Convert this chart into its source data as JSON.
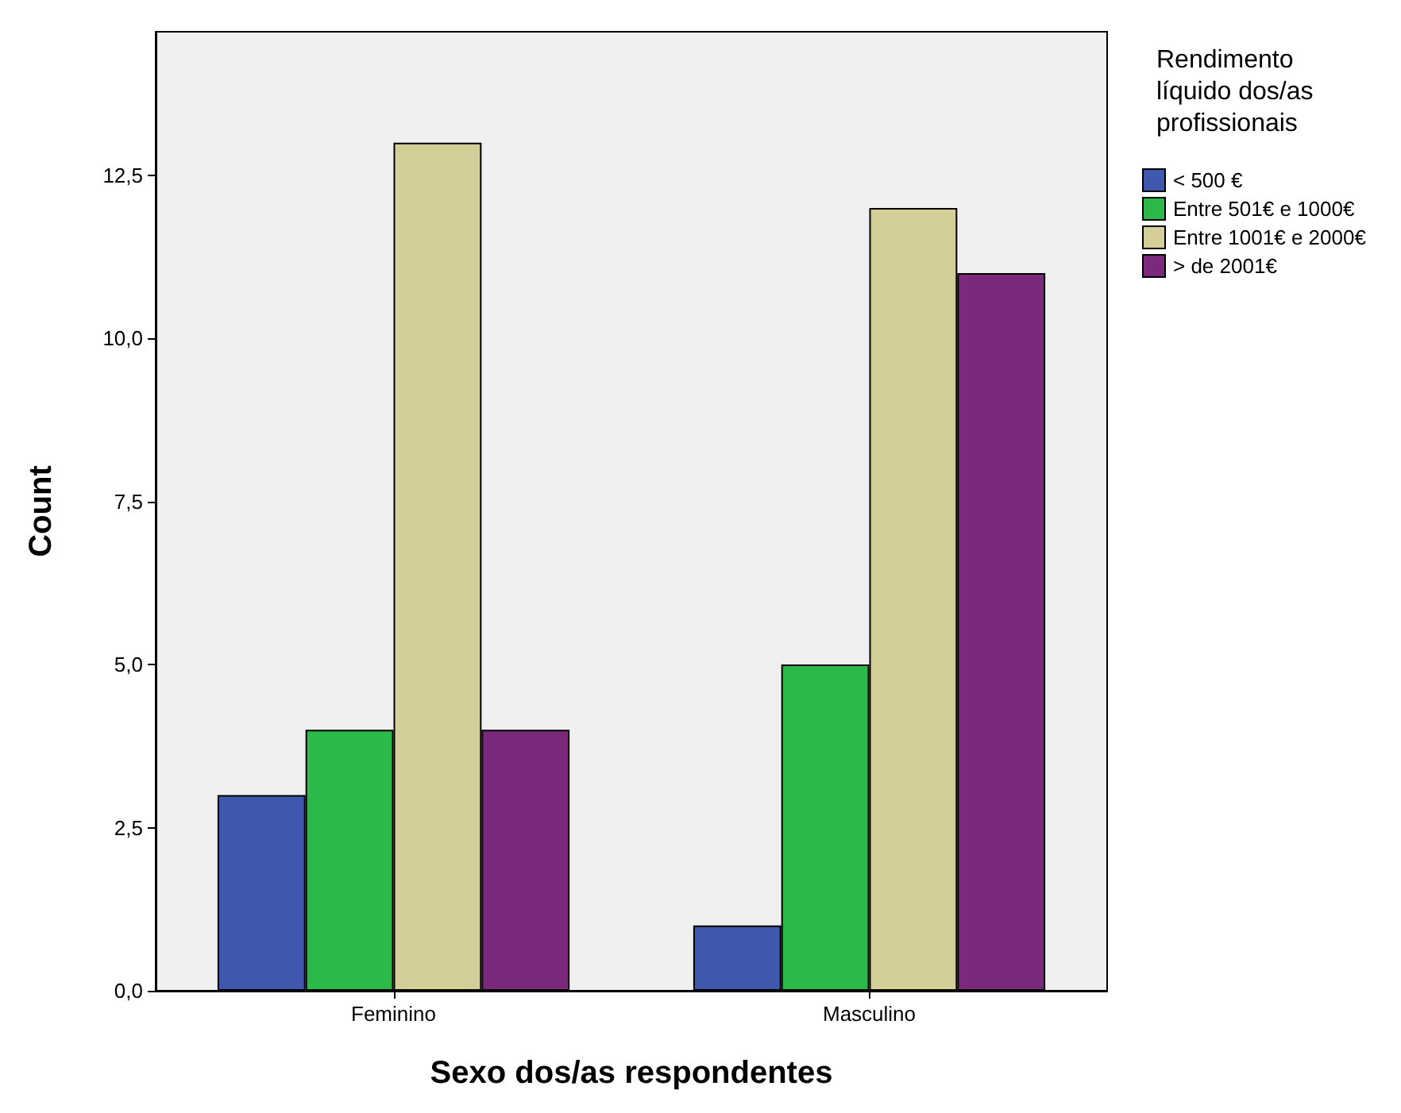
{
  "chart_data": {
    "type": "bar",
    "xlabel": "Sexo dos/as respondentes",
    "ylabel": "Count",
    "legend_title": "Rendimento\nlíquido dos/as\nprofissionais",
    "categories": [
      "Feminino",
      "Masculino"
    ],
    "series": [
      {
        "name": "< 500 €",
        "color": "#3f58ad",
        "values": [
          3,
          1
        ]
      },
      {
        "name": "Entre 501€ e 1000€",
        "color": "#2db84a",
        "values": [
          4,
          5
        ]
      },
      {
        "name": "Entre 1001€ e 2000€",
        "color": "#d4cf98",
        "values": [
          13,
          12
        ]
      },
      {
        "name": "> de 2001€",
        "color": "#7b2a7b",
        "values": [
          4,
          11
        ]
      }
    ],
    "ylim": [
      0,
      14.7
    ],
    "yticks": [
      {
        "value": 0,
        "label": "0,0"
      },
      {
        "value": 2.5,
        "label": "2,5"
      },
      {
        "value": 5,
        "label": "5,0"
      },
      {
        "value": 7.5,
        "label": "7,5"
      },
      {
        "value": 10,
        "label": "10,0"
      },
      {
        "value": 12.5,
        "label": "12,5"
      }
    ],
    "grid": false,
    "legend": "right"
  }
}
